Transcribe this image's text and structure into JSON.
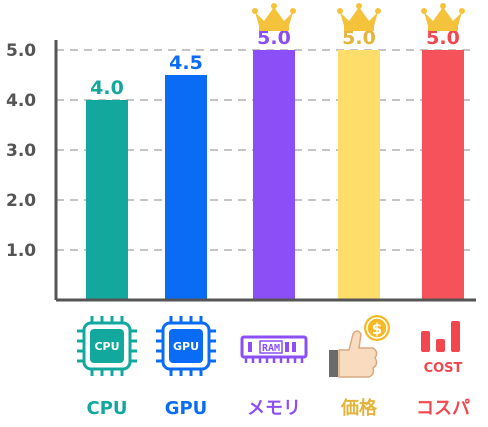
{
  "chart_data": {
    "type": "bar",
    "categories": [
      "CPU",
      "GPU",
      "メモリ",
      "価格",
      "コスパ"
    ],
    "values": [
      4.0,
      4.5,
      5.0,
      5.0,
      5.0
    ],
    "value_labels": [
      "4.0",
      "4.5",
      "5.0",
      "5.0",
      "5.0"
    ],
    "colors": [
      "#13a89e",
      "#0a6cf5",
      "#8c4ff5",
      "#ffdd6a",
      "#f6525b"
    ],
    "label_colors": [
      "#13a89e",
      "#0a6cf5",
      "#8c4ff5",
      "#e3b43c",
      "#f2474e"
    ],
    "crowned": [
      false,
      false,
      true,
      true,
      true
    ],
    "icons": [
      "cpu-chip-icon",
      "gpu-chip-icon",
      "ram-module-icon",
      "price-thumbs-up-coin-icon",
      "cost-bar-icon"
    ],
    "icon_texts": {
      "cpu": "CPU",
      "gpu": "GPU",
      "ram": "RAM",
      "coin": "$",
      "cost": "COST"
    },
    "yticks": [
      1.0,
      2.0,
      3.0,
      4.0,
      5.0
    ],
    "ytick_labels": [
      "1.0",
      "2.0",
      "3.0",
      "4.0",
      "5.0"
    ],
    "ylim": [
      0,
      5.5
    ],
    "grid": true,
    "title": "",
    "xlabel": "",
    "ylabel": ""
  }
}
